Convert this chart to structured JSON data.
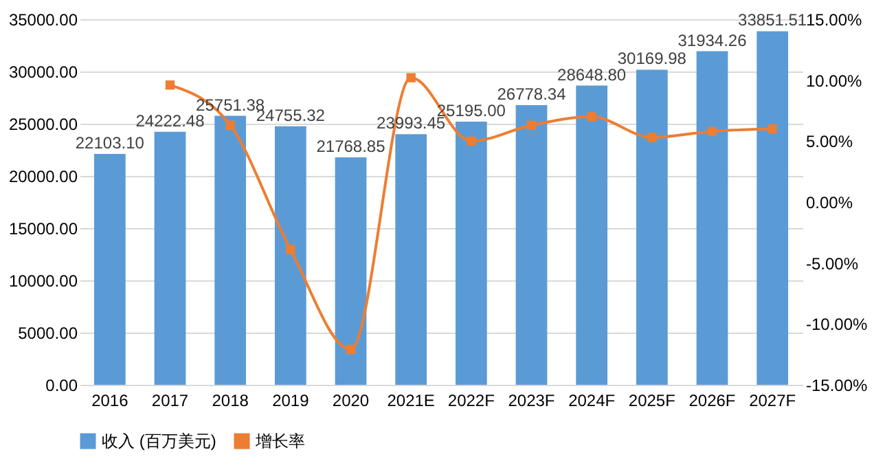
{
  "chart_data": {
    "type": "bar",
    "categories": [
      "2016",
      "2017",
      "2018",
      "2019",
      "2020",
      "2021E",
      "2022F",
      "2023F",
      "2024F",
      "2025F",
      "2026F",
      "2027F"
    ],
    "series": [
      {
        "name": "收入 (百万美元)",
        "color": "#5b9bd5",
        "values": [
          22103.1,
          24222.48,
          25751.38,
          24755.32,
          21768.85,
          23993.45,
          25195.0,
          26778.34,
          28648.8,
          30169.98,
          31934.26,
          33851.51
        ],
        "value_labels": [
          "22103.10",
          "24222.48",
          "25751.38",
          "24755.32",
          "21768.85",
          "23993.45",
          "25195.00",
          "26778.34",
          "28648.80",
          "30169.98",
          "31934.26",
          "33851.51"
        ]
      },
      {
        "name": "增长率",
        "type": "line",
        "axis": "y2",
        "color": "#ed7d31",
        "values": [
          null,
          9.6,
          6.3,
          -3.9,
          -12.1,
          10.2,
          5.0,
          6.3,
          7.0,
          5.3,
          5.8,
          6.0
        ]
      }
    ],
    "ylim": [
      0,
      35000
    ],
    "yticks": [
      {
        "value": 0,
        "label": "0.00"
      },
      {
        "value": 5000,
        "label": "5000.00"
      },
      {
        "value": 10000,
        "label": "10000.00"
      },
      {
        "value": 15000,
        "label": "15000.00"
      },
      {
        "value": 20000,
        "label": "20000.00"
      },
      {
        "value": 25000,
        "label": "25000.00"
      },
      {
        "value": 30000,
        "label": "30000.00"
      },
      {
        "value": 35000,
        "label": "35000.00"
      }
    ],
    "y2lim": [
      -15,
      15
    ],
    "y2ticks": [
      {
        "value": -15,
        "label": "-15.00%"
      },
      {
        "value": -10,
        "label": "-10.00%"
      },
      {
        "value": -5,
        "label": "-5.00%"
      },
      {
        "value": 0,
        "label": "0.00%"
      },
      {
        "value": 5,
        "label": "5.00%"
      },
      {
        "value": 10,
        "label": "10.00%"
      },
      {
        "value": 15,
        "label": "15.00%"
      }
    ],
    "grid": "y",
    "legend": "bottom",
    "marker": "square",
    "line_style": "solid"
  }
}
